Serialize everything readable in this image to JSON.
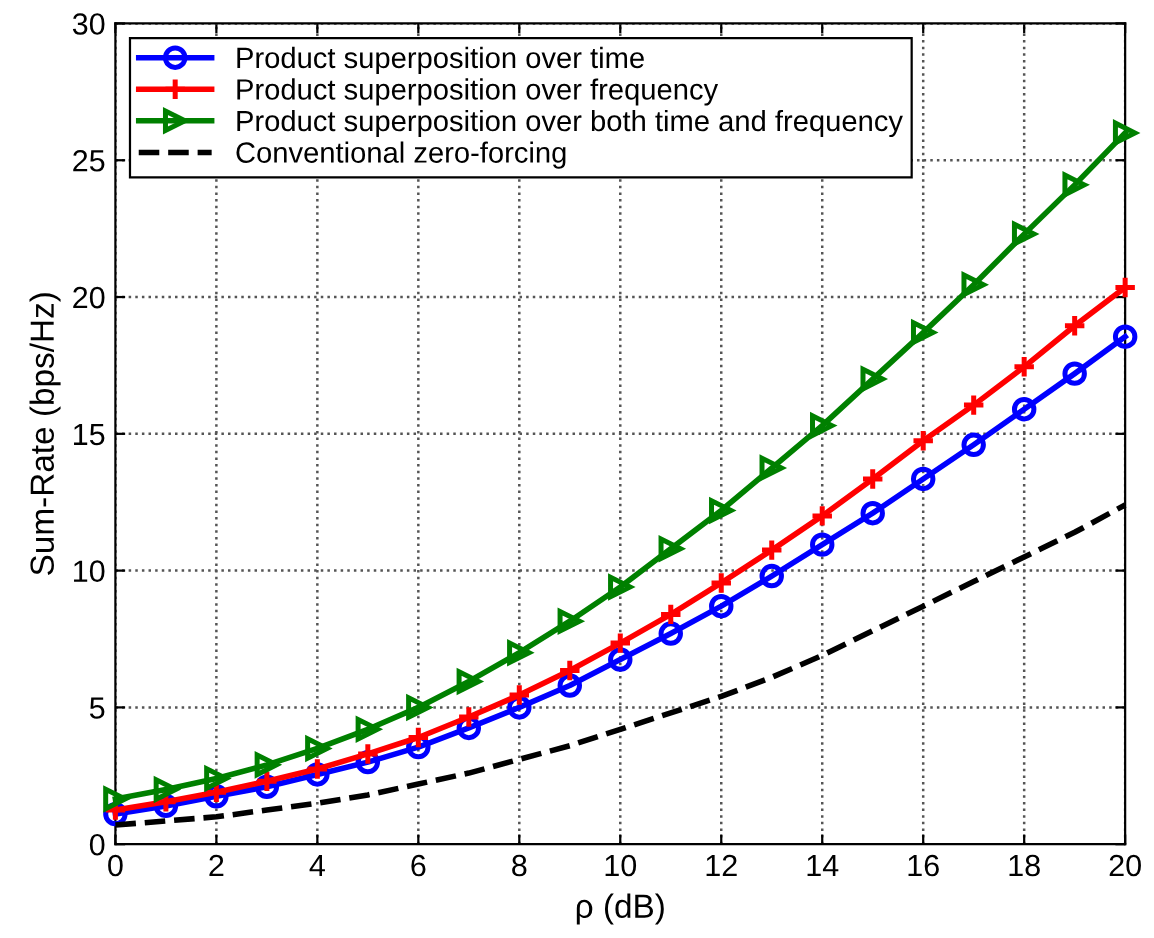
{
  "chart_data": {
    "type": "line",
    "xlabel": "ρ (dB)",
    "ylabel": "Sum-Rate (bps/Hz)",
    "x": [
      0,
      1,
      2,
      3,
      4,
      5,
      6,
      7,
      8,
      9,
      10,
      11,
      12,
      13,
      14,
      15,
      16,
      17,
      18,
      19,
      20
    ],
    "series": [
      {
        "name": "Product superposition over time",
        "color": "#0000ff",
        "marker": "circle",
        "line_style": "solid",
        "values": [
          1.1,
          1.4,
          1.75,
          2.1,
          2.55,
          3.0,
          3.55,
          4.25,
          5.0,
          5.8,
          6.75,
          7.7,
          8.7,
          9.8,
          10.95,
          12.1,
          13.35,
          14.6,
          15.9,
          17.2,
          18.55
        ]
      },
      {
        "name": "Product superposition over frequency",
        "color": "#ff0000",
        "marker": "cross",
        "line_style": "solid",
        "values": [
          1.25,
          1.55,
          1.9,
          2.3,
          2.75,
          3.3,
          3.9,
          4.65,
          5.45,
          6.35,
          7.35,
          8.4,
          9.55,
          10.75,
          12.0,
          13.35,
          14.75,
          16.05,
          17.45,
          18.95,
          20.35
        ]
      },
      {
        "name": "Product superposition over both time and frequency",
        "color": "#008000",
        "marker": "triangle",
        "line_style": "solid",
        "values": [
          1.65,
          2.0,
          2.4,
          2.9,
          3.5,
          4.2,
          5.0,
          5.95,
          7.0,
          8.15,
          9.4,
          10.8,
          12.2,
          13.75,
          15.3,
          17.0,
          18.7,
          20.45,
          22.3,
          24.1,
          26.0
        ]
      },
      {
        "name": "Conventional zero-forcing",
        "color": "#000000",
        "marker": "none",
        "line_style": "dashed",
        "values": [
          0.7,
          0.85,
          1.0,
          1.25,
          1.5,
          1.8,
          2.2,
          2.6,
          3.1,
          3.6,
          4.2,
          4.8,
          5.4,
          6.1,
          6.9,
          7.8,
          8.7,
          9.6,
          10.5,
          11.4,
          12.4
        ]
      }
    ],
    "xlim": [
      0,
      20
    ],
    "xticks": [
      0,
      2,
      4,
      6,
      8,
      10,
      12,
      14,
      16,
      18,
      20
    ],
    "ylim": [
      0,
      30
    ],
    "yticks": [
      0,
      5,
      10,
      15,
      20,
      25,
      30
    ],
    "grid": true,
    "legend": "top left"
  }
}
